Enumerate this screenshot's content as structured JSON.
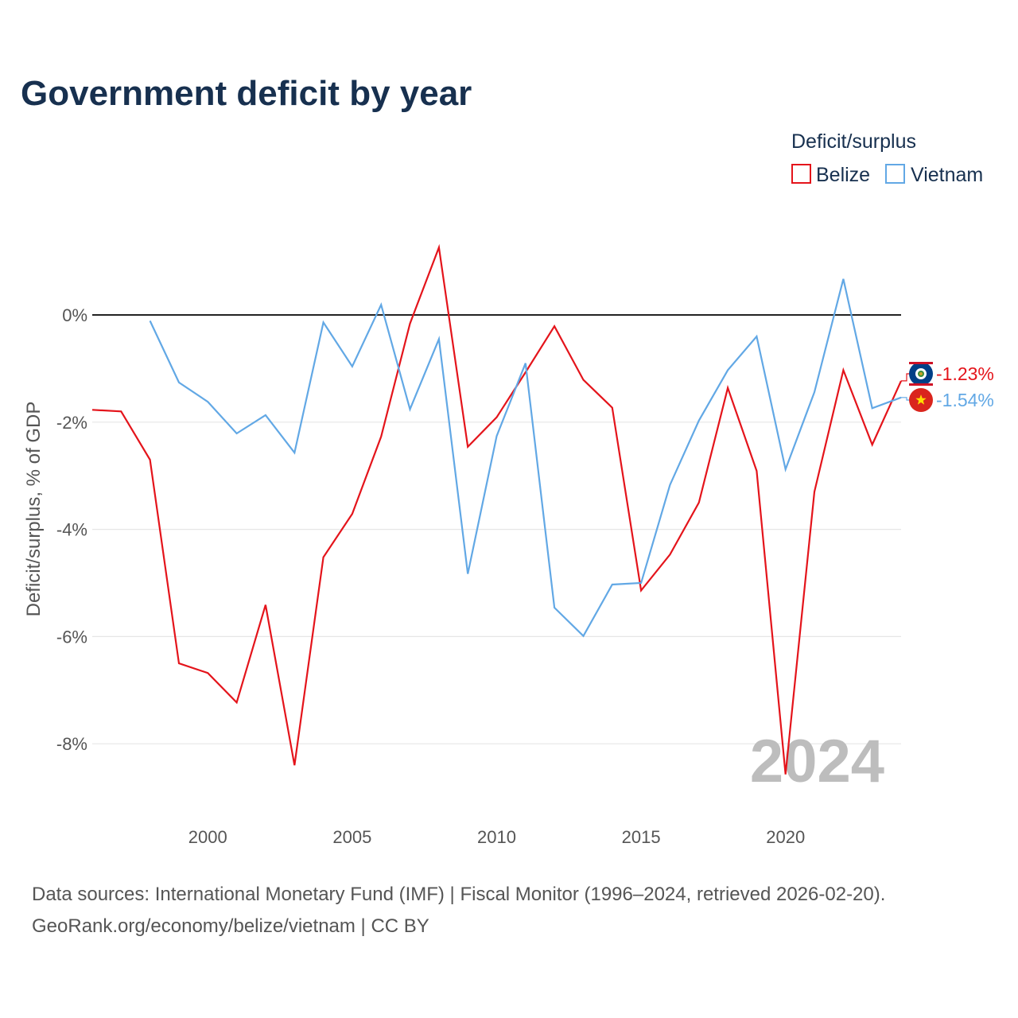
{
  "title": "Government deficit by year",
  "legend": {
    "title": "Deficit/surplus"
  },
  "watermark_year": "2024",
  "source_lines": [
    "Data sources: International Monetary Fund (IMF) | Fiscal Monitor (1996–2024, retrieved 2026-02-20).",
    "GeoRank.org/economy/belize/vietnam | CC BY"
  ],
  "colors": {
    "belize": "#e4141b",
    "vietnam": "#62a8e5",
    "zero_line": "#222222",
    "grid": "#e6e6e6",
    "title": "#17304f",
    "watermark": "#bdbdbd"
  },
  "chart_data": {
    "type": "line",
    "title": "Government deficit by year",
    "xlabel": "",
    "ylabel": "Deficit/surplus, % of GDP",
    "xlim": [
      1996,
      2024
    ],
    "ylim": [
      -9.2,
      1.5
    ],
    "x_ticks": [
      2000,
      2005,
      2010,
      2015,
      2020
    ],
    "y_ticks": [
      0,
      -2,
      -4,
      -6,
      -8
    ],
    "y_tick_labels": [
      "0%",
      "-2%",
      "-4%",
      "-6%",
      "-8%"
    ],
    "series": [
      {
        "name": "Belize",
        "end_label": "-1.23%",
        "flag": "belize-flag",
        "x": [
          1996,
          1997,
          1998,
          1999,
          2000,
          2001,
          2002,
          2003,
          2004,
          2005,
          2006,
          2007,
          2008,
          2009,
          2010,
          2011,
          2012,
          2013,
          2014,
          2015,
          2016,
          2017,
          2018,
          2019,
          2020,
          2021,
          2022,
          2023,
          2024
        ],
        "values": [
          -1.77,
          -1.8,
          -2.7,
          -6.5,
          -6.68,
          -7.23,
          -5.41,
          -8.4,
          -4.52,
          -3.71,
          -2.27,
          -0.16,
          1.26,
          -2.46,
          -1.91,
          -1.07,
          -0.21,
          -1.21,
          -1.73,
          -5.14,
          -4.47,
          -3.5,
          -1.36,
          -2.91,
          -8.57,
          -3.3,
          -1.03,
          -2.42,
          -1.23
        ]
      },
      {
        "name": "Vietnam",
        "end_label": "-1.54%",
        "flag": "vietnam-flag",
        "x": [
          1998,
          1999,
          2000,
          2001,
          2002,
          2003,
          2004,
          2005,
          2006,
          2007,
          2008,
          2009,
          2010,
          2011,
          2012,
          2013,
          2014,
          2015,
          2016,
          2017,
          2018,
          2019,
          2020,
          2021,
          2022,
          2023,
          2024
        ],
        "values": [
          -0.11,
          -1.26,
          -1.62,
          -2.21,
          -1.87,
          -2.57,
          -0.14,
          -0.96,
          0.19,
          -1.76,
          -0.45,
          -4.83,
          -2.26,
          -0.9,
          -5.46,
          -5.99,
          -5.03,
          -5.0,
          -3.17,
          -1.97,
          -1.03,
          -0.4,
          -2.88,
          -1.44,
          0.67,
          -1.74,
          -1.54
        ]
      }
    ]
  }
}
